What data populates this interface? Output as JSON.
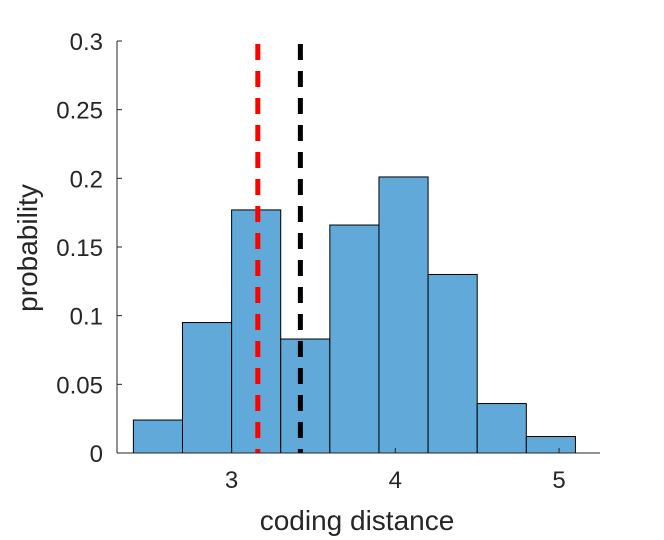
{
  "chart_data": {
    "type": "histogram",
    "xlabel": "coding distance",
    "ylabel": "probability",
    "xlim": [
      2.3,
      5.25
    ],
    "ylim": [
      0,
      0.3
    ],
    "xticks": [
      3,
      4,
      5
    ],
    "yticks": [
      0,
      0.05,
      0.1,
      0.15,
      0.2,
      0.25,
      0.3
    ],
    "ytick_labels": [
      "0",
      "0.05",
      "0.1",
      "0.15",
      "0.2",
      "0.25",
      "0.3"
    ],
    "xtick_labels": [
      "3",
      "4",
      "5"
    ],
    "bin_edges": [
      2.4,
      2.7,
      3.0,
      3.3,
      3.6,
      3.9,
      4.2,
      4.5,
      4.8,
      5.1
    ],
    "values": [
      0.024,
      0.095,
      0.177,
      0.083,
      0.166,
      0.201,
      0.13,
      0.036,
      0.012
    ],
    "bar_color": "#61a9d9",
    "bar_edge_color": "#000000",
    "vlines": [
      {
        "x": 3.16,
        "color": "#ff0000",
        "style": "dashed"
      },
      {
        "x": 3.42,
        "color": "#000000",
        "style": "dashed"
      }
    ],
    "grid": false
  }
}
